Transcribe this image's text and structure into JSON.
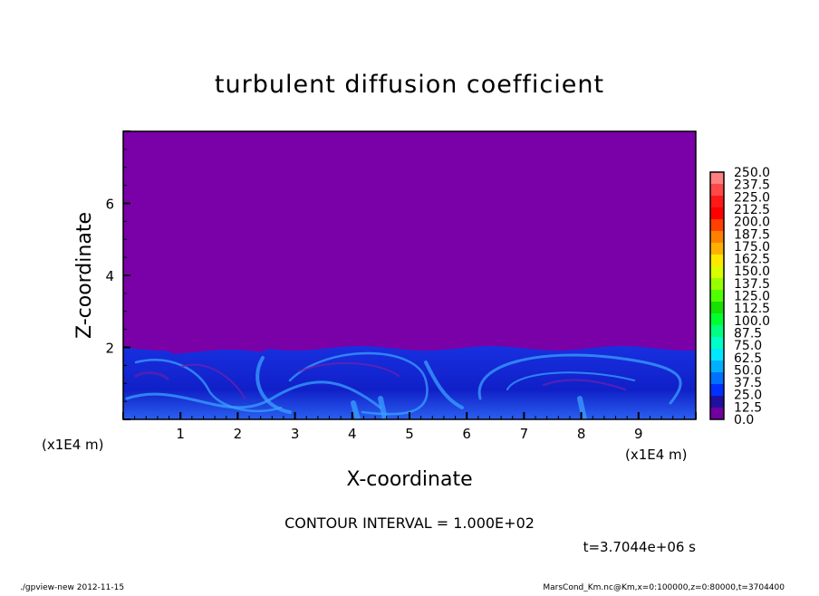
{
  "chart_data": {
    "type": "heatmap",
    "title": "turbulent diffusion coefficient",
    "xlabel": "X-coordinate",
    "ylabel": "Z-coordinate",
    "x_unit_label": "(x1E4 m)",
    "z_unit_label": "(x1E4 m)",
    "xlim": [
      0,
      10
    ],
    "ylim": [
      0,
      8
    ],
    "x_ticks": [
      1,
      2,
      3,
      4,
      5,
      6,
      7,
      8,
      9
    ],
    "x_tick_labels": [
      "1",
      "2",
      "3",
      "4",
      "5",
      "6",
      "7",
      "8",
      "9"
    ],
    "y_ticks": [
      2,
      4,
      6
    ],
    "y_tick_labels": [
      "2",
      "4",
      "6"
    ],
    "field_description_levels": {
      "background_value_above_z2": 0.0,
      "turbulent_layer_top_z": 2.0,
      "turbulent_layer_range": [
        12.5,
        87.5
      ]
    },
    "colorbar": {
      "labels": [
        "250.0",
        "237.5",
        "225.0",
        "212.5",
        "200.0",
        "187.5",
        "175.0",
        "162.5",
        "150.0",
        "137.5",
        "125.0",
        "112.5",
        "100.0",
        "87.5",
        "75.0",
        "62.5",
        "50.0",
        "37.5",
        "25.0",
        "12.5",
        "0.0"
      ],
      "colors_top_to_bottom": [
        "#ff8080",
        "#ff4848",
        "#ff1818",
        "#ff0000",
        "#ff4000",
        "#ff8000",
        "#ffb000",
        "#ffe800",
        "#d8ff00",
        "#98ff00",
        "#50ff00",
        "#18e000",
        "#00ff30",
        "#00ff80",
        "#00ffc8",
        "#00e8ff",
        "#00b0ff",
        "#0070ff",
        "#0030ff",
        "#2010a0",
        "#7000a0"
      ]
    },
    "contour_interval": "CONTOUR INTERVAL = 1.000E+02",
    "time_label": "t=3.7044e+06 s"
  },
  "footer": {
    "left": "./gpview-new  2012-11-15",
    "right": "MarsCond_Km.nc@Km,x=0:100000,z=0:80000,t=3704400"
  },
  "colors": {
    "background_field": "#7a00a8",
    "turbulence_base": "#1428d8",
    "turbulence_highlight": "#3aa0ff"
  }
}
